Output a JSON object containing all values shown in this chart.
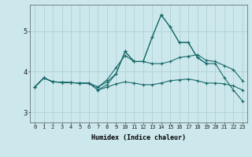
{
  "xlabel": "Humidex (Indice chaleur)",
  "xlim": [
    -0.5,
    23.5
  ],
  "ylim": [
    2.75,
    5.65
  ],
  "background_color": "#cce8ec",
  "grid_color": "#aacdd2",
  "line_color": "#1a6b6b",
  "x": [
    0,
    1,
    2,
    3,
    4,
    5,
    6,
    7,
    8,
    9,
    10,
    11,
    12,
    13,
    14,
    15,
    16,
    17,
    18,
    19,
    20,
    21,
    22,
    23
  ],
  "line1": [
    3.62,
    3.85,
    3.75,
    3.74,
    3.73,
    3.72,
    3.72,
    3.62,
    3.75,
    3.95,
    4.5,
    4.25,
    4.25,
    4.85,
    5.4,
    5.1,
    4.72,
    4.72,
    4.35,
    4.2,
    4.2,
    3.85,
    3.55,
    3.28
  ],
  "line2": [
    3.62,
    3.85,
    3.75,
    3.74,
    3.73,
    3.72,
    3.72,
    3.55,
    3.62,
    3.7,
    3.75,
    3.72,
    3.68,
    3.68,
    3.72,
    3.78,
    3.8,
    3.82,
    3.78,
    3.72,
    3.72,
    3.7,
    3.65,
    3.55
  ],
  "line3": [
    3.62,
    3.85,
    3.75,
    3.74,
    3.73,
    3.72,
    3.72,
    3.55,
    3.68,
    3.95,
    4.5,
    4.25,
    4.25,
    4.85,
    5.4,
    5.1,
    4.72,
    4.72,
    4.35,
    4.2,
    null,
    null,
    null,
    null
  ],
  "line4": [
    3.62,
    3.85,
    3.75,
    3.74,
    3.73,
    3.72,
    3.72,
    3.62,
    3.8,
    4.1,
    4.4,
    4.25,
    4.25,
    4.2,
    4.2,
    4.25,
    4.35,
    4.38,
    4.42,
    4.28,
    4.25,
    4.15,
    4.05,
    3.78
  ],
  "yticks": [
    3,
    4,
    5
  ],
  "xtick_labels": [
    "0",
    "1",
    "2",
    "3",
    "4",
    "5",
    "6",
    "7",
    "8",
    "9",
    "10",
    "11",
    "12",
    "13",
    "14",
    "15",
    "16",
    "17",
    "18",
    "19",
    "20",
    "21",
    "22",
    "23"
  ]
}
